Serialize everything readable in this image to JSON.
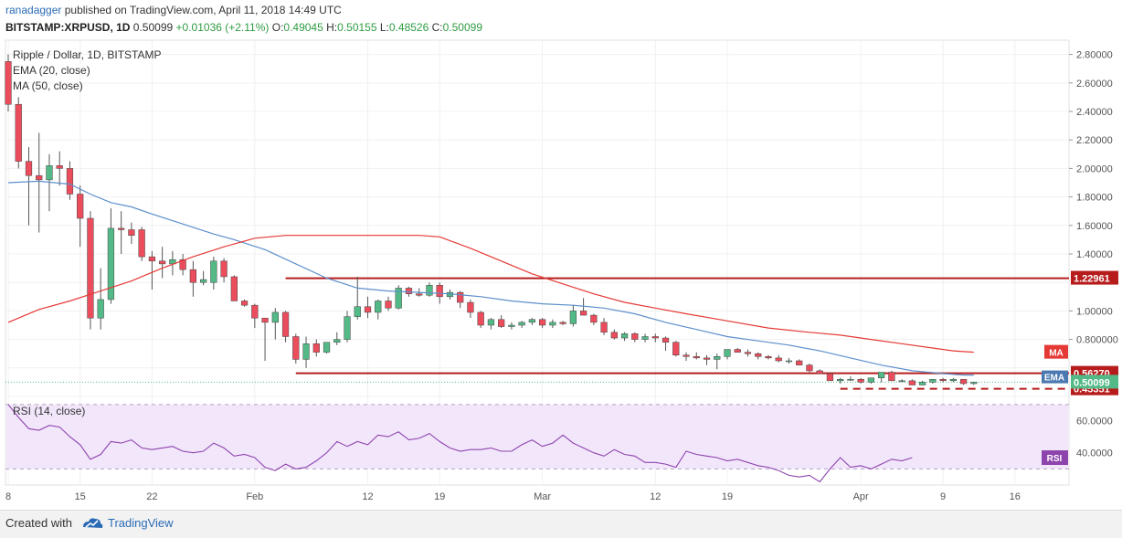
{
  "header": {
    "author": "ranadagger",
    "published": "published on TradingView.com, April 11, 2018 14:49 UTC",
    "symbol": "BITSTAMP:XRPUSD, 1D",
    "price": "0.50099",
    "change": "+0.01036 (+2.11%)",
    "o_label": "O:",
    "o_value": "0.49045",
    "h_label": "H:",
    "h_value": "0.50155",
    "l_label": "L:",
    "l_value": "0.48526",
    "c_label": "C:",
    "c_value": "0.50099"
  },
  "footer": {
    "created_with": "Created with",
    "brand": "TradingView"
  },
  "chart_data": {
    "type": "candlestick",
    "title": "Ripple / Dollar, 1D, BITSTAMP",
    "legend": [
      "EMA (20, close)",
      "MA (50, close)"
    ],
    "colors": {
      "up": "#53b987",
      "down": "#eb4d5c",
      "ema": "#5d8fcb",
      "ma": "#e53935",
      "level": "#b71c1c",
      "rsi": "#8e44ad",
      "rsi_bg": "#f2e6fb"
    },
    "ylim": [
      0.4,
      2.9
    ],
    "y_ticks": [
      0.4,
      0.6,
      0.8,
      1.0,
      1.2,
      1.4,
      1.6,
      1.8,
      2.0,
      2.2,
      2.4,
      2.6,
      2.8
    ],
    "y_tick_labels": [
      "",
      "",
      "0.800000",
      "1.00000",
      "",
      "1.40000",
      "1.60000",
      "1.80000",
      "2.00000",
      "2.20000",
      "2.40000",
      "2.60000",
      "2.80000"
    ],
    "x_ticks": [
      {
        "day": 0,
        "label": "8"
      },
      {
        "day": 7,
        "label": "15"
      },
      {
        "day": 14,
        "label": "22"
      },
      {
        "day": 24,
        "label": "Feb"
      },
      {
        "day": 35,
        "label": "12"
      },
      {
        "day": 42,
        "label": "19"
      },
      {
        "day": 52,
        "label": "Mar"
      },
      {
        "day": 63,
        "label": "12"
      },
      {
        "day": 70,
        "label": "19"
      },
      {
        "day": 83,
        "label": "Apr"
      },
      {
        "day": 91,
        "label": "9"
      },
      {
        "day": 98,
        "label": "16"
      }
    ],
    "xlim": [
      0,
      103
    ],
    "ohlc": [
      [
        2.75,
        2.8,
        2.4,
        2.45
      ],
      [
        2.45,
        2.5,
        2.0,
        2.05
      ],
      [
        2.05,
        2.15,
        1.6,
        1.95
      ],
      [
        1.95,
        2.25,
        1.55,
        1.92
      ],
      [
        1.92,
        2.1,
        1.7,
        2.02
      ],
      [
        2.02,
        2.12,
        1.88,
        2.0
      ],
      [
        2.0,
        2.05,
        1.78,
        1.82
      ],
      [
        1.82,
        1.88,
        1.45,
        1.65
      ],
      [
        1.65,
        1.7,
        0.87,
        0.95
      ],
      [
        0.95,
        1.3,
        0.87,
        1.08
      ],
      [
        1.08,
        1.72,
        1.05,
        1.58
      ],
      [
        1.58,
        1.7,
        1.4,
        1.57
      ],
      [
        1.57,
        1.62,
        1.47,
        1.53
      ],
      [
        1.57,
        1.59,
        1.35,
        1.38
      ],
      [
        1.38,
        1.42,
        1.15,
        1.35
      ],
      [
        1.35,
        1.45,
        1.23,
        1.33
      ],
      [
        1.33,
        1.42,
        1.25,
        1.36
      ],
      [
        1.36,
        1.4,
        1.25,
        1.29
      ],
      [
        1.29,
        1.35,
        1.1,
        1.2
      ],
      [
        1.2,
        1.28,
        1.18,
        1.22
      ],
      [
        1.2,
        1.38,
        1.15,
        1.35
      ],
      [
        1.35,
        1.37,
        1.2,
        1.24
      ],
      [
        1.24,
        1.25,
        1.08,
        1.07
      ],
      [
        1.07,
        1.08,
        1.03,
        1.04
      ],
      [
        1.04,
        1.05,
        0.88,
        0.95
      ],
      [
        0.95,
        0.95,
        0.65,
        0.92
      ],
      [
        0.92,
        1.02,
        0.8,
        0.99
      ],
      [
        0.99,
        1.0,
        0.78,
        0.82
      ],
      [
        0.82,
        0.84,
        0.63,
        0.66
      ],
      [
        0.66,
        0.82,
        0.6,
        0.77
      ],
      [
        0.77,
        0.8,
        0.68,
        0.71
      ],
      [
        0.71,
        0.78,
        0.7,
        0.78
      ],
      [
        0.78,
        0.85,
        0.76,
        0.8
      ],
      [
        0.8,
        1.0,
        0.78,
        0.96
      ],
      [
        0.96,
        1.24,
        0.94,
        1.03
      ],
      [
        1.03,
        1.1,
        0.95,
        0.99
      ],
      [
        0.99,
        1.08,
        0.94,
        1.07
      ],
      [
        1.07,
        1.1,
        1.0,
        1.02
      ],
      [
        1.02,
        1.18,
        1.01,
        1.16
      ],
      [
        1.16,
        1.17,
        1.1,
        1.12
      ],
      [
        1.12,
        1.16,
        1.1,
        1.11
      ],
      [
        1.11,
        1.2,
        1.1,
        1.18
      ],
      [
        1.18,
        1.2,
        1.05,
        1.1
      ],
      [
        1.1,
        1.15,
        1.08,
        1.13
      ],
      [
        1.13,
        1.14,
        1.02,
        1.06
      ],
      [
        1.06,
        1.08,
        0.95,
        0.99
      ],
      [
        0.99,
        1.0,
        0.88,
        0.9
      ],
      [
        0.9,
        0.95,
        0.87,
        0.94
      ],
      [
        0.94,
        0.97,
        0.88,
        0.89
      ],
      [
        0.89,
        0.92,
        0.87,
        0.9
      ],
      [
        0.9,
        0.93,
        0.88,
        0.92
      ],
      [
        0.92,
        0.95,
        0.9,
        0.94
      ],
      [
        0.94,
        0.95,
        0.88,
        0.9
      ],
      [
        0.9,
        0.94,
        0.88,
        0.92
      ],
      [
        0.92,
        0.93,
        0.9,
        0.91
      ],
      [
        0.91,
        1.04,
        0.89,
        1.0
      ],
      [
        1.0,
        1.09,
        0.97,
        0.97
      ],
      [
        0.97,
        0.98,
        0.9,
        0.92
      ],
      [
        0.92,
        0.95,
        0.83,
        0.85
      ],
      [
        0.85,
        0.87,
        0.8,
        0.81
      ],
      [
        0.81,
        0.85,
        0.79,
        0.84
      ],
      [
        0.84,
        0.85,
        0.78,
        0.8
      ],
      [
        0.8,
        0.84,
        0.78,
        0.82
      ],
      [
        0.82,
        0.84,
        0.78,
        0.81
      ],
      [
        0.81,
        0.82,
        0.72,
        0.78
      ],
      [
        0.78,
        0.79,
        0.68,
        0.69
      ],
      [
        0.69,
        0.71,
        0.65,
        0.68
      ],
      [
        0.68,
        0.71,
        0.66,
        0.67
      ],
      [
        0.67,
        0.69,
        0.62,
        0.66
      ],
      [
        0.66,
        0.7,
        0.59,
        0.68
      ],
      [
        0.68,
        0.73,
        0.66,
        0.73
      ],
      [
        0.73,
        0.74,
        0.71,
        0.71
      ],
      [
        0.71,
        0.73,
        0.68,
        0.7
      ],
      [
        0.7,
        0.71,
        0.66,
        0.68
      ],
      [
        0.68,
        0.69,
        0.66,
        0.67
      ],
      [
        0.67,
        0.69,
        0.64,
        0.65
      ],
      [
        0.65,
        0.67,
        0.63,
        0.65
      ],
      [
        0.65,
        0.66,
        0.62,
        0.62
      ],
      [
        0.62,
        0.63,
        0.57,
        0.58
      ],
      [
        0.58,
        0.59,
        0.56,
        0.56
      ],
      [
        0.56,
        0.57,
        0.51,
        0.51
      ],
      [
        0.51,
        0.53,
        0.49,
        0.52
      ],
      [
        0.52,
        0.54,
        0.51,
        0.52
      ],
      [
        0.52,
        0.53,
        0.49,
        0.5
      ],
      [
        0.5,
        0.53,
        0.49,
        0.53
      ],
      [
        0.53,
        0.57,
        0.5,
        0.57
      ],
      [
        0.57,
        0.58,
        0.51,
        0.51
      ],
      [
        0.51,
        0.52,
        0.5,
        0.51
      ],
      [
        0.51,
        0.52,
        0.48,
        0.48
      ],
      [
        0.48,
        0.51,
        0.48,
        0.5
      ],
      [
        0.5,
        0.52,
        0.49,
        0.52
      ],
      [
        0.52,
        0.53,
        0.5,
        0.51
      ],
      [
        0.51,
        0.53,
        0.5,
        0.52
      ],
      [
        0.52,
        0.52,
        0.48,
        0.49
      ],
      [
        0.49,
        0.5,
        0.48,
        0.5
      ]
    ],
    "ema_20": [
      [
        0,
        1.9
      ],
      [
        3,
        1.91
      ],
      [
        6,
        1.89
      ],
      [
        8,
        1.82
      ],
      [
        10,
        1.76
      ],
      [
        12,
        1.73
      ],
      [
        14,
        1.68
      ],
      [
        17,
        1.61
      ],
      [
        20,
        1.54
      ],
      [
        22,
        1.5
      ],
      [
        25,
        1.43
      ],
      [
        28,
        1.33
      ],
      [
        31,
        1.23
      ],
      [
        34,
        1.16
      ],
      [
        37,
        1.14
      ],
      [
        40,
        1.13
      ],
      [
        43,
        1.12
      ],
      [
        46,
        1.1
      ],
      [
        49,
        1.07
      ],
      [
        52,
        1.05
      ],
      [
        55,
        1.04
      ],
      [
        58,
        1.02
      ],
      [
        61,
        0.98
      ],
      [
        64,
        0.92
      ],
      [
        67,
        0.87
      ],
      [
        70,
        0.82
      ],
      [
        73,
        0.79
      ],
      [
        76,
        0.76
      ],
      [
        79,
        0.72
      ],
      [
        82,
        0.67
      ],
      [
        85,
        0.62
      ],
      [
        88,
        0.58
      ],
      [
        91,
        0.56
      ],
      [
        93,
        0.55
      ],
      [
        94,
        0.55
      ]
    ],
    "ma_50": [
      [
        0,
        0.92
      ],
      [
        3,
        1.01
      ],
      [
        6,
        1.07
      ],
      [
        9,
        1.14
      ],
      [
        12,
        1.21
      ],
      [
        15,
        1.3
      ],
      [
        18,
        1.38
      ],
      [
        21,
        1.45
      ],
      [
        24,
        1.51
      ],
      [
        27,
        1.53
      ],
      [
        30,
        1.53
      ],
      [
        33,
        1.53
      ],
      [
        36,
        1.53
      ],
      [
        40,
        1.53
      ],
      [
        42,
        1.52
      ],
      [
        45,
        1.44
      ],
      [
        48,
        1.35
      ],
      [
        51,
        1.26
      ],
      [
        54,
        1.19
      ],
      [
        57,
        1.12
      ],
      [
        60,
        1.06
      ],
      [
        63,
        1.02
      ],
      [
        66,
        0.98
      ],
      [
        70,
        0.93
      ],
      [
        74,
        0.88
      ],
      [
        78,
        0.85
      ],
      [
        81,
        0.83
      ],
      [
        84,
        0.8
      ],
      [
        87,
        0.77
      ],
      [
        90,
        0.74
      ],
      [
        92,
        0.72
      ],
      [
        94,
        0.71
      ]
    ],
    "levels": [
      {
        "value": 1.22961,
        "label": "1.22961",
        "from_day": 27,
        "style": "solid"
      },
      {
        "value": 0.5627,
        "label": "0.56270",
        "from_day": 28,
        "style": "solid"
      },
      {
        "value": 0.45351,
        "label": "0.45351",
        "from_day": 81,
        "style": "dashed"
      }
    ],
    "last_price_label": "0.50099",
    "ma_tag": "MA",
    "ema_tag": "EMA",
    "rsi": {
      "title": "RSI (14, close)",
      "ylim": [
        20,
        75
      ],
      "ticks": [
        40,
        60
      ],
      "tick_labels": [
        "40.0000",
        "60.0000"
      ],
      "band": [
        30,
        70
      ],
      "tag": "RSI",
      "values": [
        [
          0,
          70
        ],
        [
          1,
          62
        ],
        [
          2,
          55
        ],
        [
          3,
          54
        ],
        [
          4,
          57
        ],
        [
          5,
          56
        ],
        [
          6,
          50
        ],
        [
          7,
          45
        ],
        [
          8,
          36
        ],
        [
          9,
          39
        ],
        [
          10,
          47
        ],
        [
          11,
          46
        ],
        [
          12,
          48
        ],
        [
          13,
          43
        ],
        [
          14,
          42
        ],
        [
          15,
          43
        ],
        [
          16,
          44
        ],
        [
          17,
          41
        ],
        [
          18,
          40
        ],
        [
          19,
          41
        ],
        [
          20,
          46
        ],
        [
          21,
          43
        ],
        [
          22,
          38
        ],
        [
          23,
          39
        ],
        [
          24,
          37
        ],
        [
          25,
          31
        ],
        [
          26,
          29
        ],
        [
          27,
          33
        ],
        [
          28,
          30
        ],
        [
          29,
          31
        ],
        [
          30,
          35
        ],
        [
          31,
          40
        ],
        [
          32,
          47
        ],
        [
          33,
          44
        ],
        [
          34,
          47
        ],
        [
          35,
          45
        ],
        [
          36,
          51
        ],
        [
          37,
          50
        ],
        [
          38,
          53
        ],
        [
          39,
          48
        ],
        [
          40,
          49
        ],
        [
          41,
          52
        ],
        [
          42,
          47
        ],
        [
          43,
          43
        ],
        [
          44,
          41
        ],
        [
          45,
          42
        ],
        [
          46,
          42
        ],
        [
          47,
          43
        ],
        [
          48,
          41
        ],
        [
          49,
          41
        ],
        [
          50,
          45
        ],
        [
          51,
          48
        ],
        [
          52,
          44
        ],
        [
          53,
          46
        ],
        [
          54,
          51
        ],
        [
          55,
          46
        ],
        [
          56,
          43
        ],
        [
          57,
          40
        ],
        [
          58,
          38
        ],
        [
          59,
          42
        ],
        [
          60,
          39
        ],
        [
          61,
          38
        ],
        [
          62,
          34
        ],
        [
          63,
          34
        ],
        [
          64,
          33
        ],
        [
          65,
          31
        ],
        [
          66,
          41
        ],
        [
          67,
          39
        ],
        [
          68,
          38
        ],
        [
          69,
          37
        ],
        [
          70,
          35
        ],
        [
          71,
          36
        ],
        [
          72,
          34
        ],
        [
          73,
          32
        ],
        [
          74,
          31
        ],
        [
          75,
          29
        ],
        [
          76,
          26
        ],
        [
          77,
          25
        ],
        [
          78,
          26
        ],
        [
          79,
          22
        ],
        [
          80,
          30
        ],
        [
          81,
          37
        ],
        [
          82,
          31
        ],
        [
          83,
          32
        ],
        [
          84,
          30
        ],
        [
          85,
          33
        ],
        [
          86,
          36
        ],
        [
          87,
          35
        ],
        [
          88,
          37
        ]
      ]
    }
  }
}
